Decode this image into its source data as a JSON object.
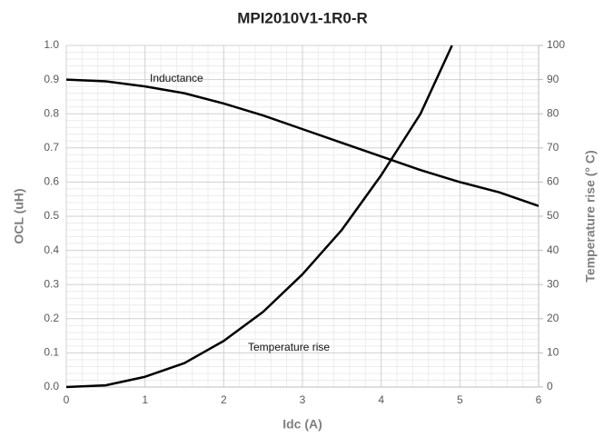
{
  "chart_data": {
    "type": "line",
    "title": "MPI2010V1-1R0-R",
    "x_label": "Idc (A)",
    "y_label": "OCL (uH)",
    "y2_label": "Temperature rise (° C)",
    "x": [
      0,
      0.5,
      1,
      1.5,
      2,
      2.5,
      3,
      3.5,
      4,
      4.5,
      4.9,
      5,
      5.5,
      6
    ],
    "series": [
      {
        "name": "Inductance",
        "color": "#000000",
        "values": [
          0.9,
          0.895,
          0.88,
          0.86,
          0.83,
          0.795,
          0.755,
          0.715,
          0.675,
          0.635,
          0.607,
          0.6,
          0.57,
          0.53
        ]
      },
      {
        "name": "Temperature rise",
        "color": "#000000",
        "axis": "y2",
        "values": [
          0,
          0.5,
          3,
          7,
          13.5,
          22,
          33,
          46,
          62,
          80,
          100,
          null,
          null,
          null
        ]
      }
    ],
    "xlim": [
      0,
      6
    ],
    "xticks": [
      0,
      1,
      2,
      3,
      4,
      5,
      6
    ],
    "ylim": [
      0,
      1
    ],
    "yticks": [
      {
        "value": 0,
        "label": "0.0"
      },
      0.1,
      0.2,
      0.3,
      0.4,
      0.5,
      0.6,
      0.7,
      0.8,
      0.9,
      {
        "value": 1,
        "label": "1.0"
      }
    ],
    "y2lim": [
      0,
      100
    ],
    "y2ticks": [
      0,
      10,
      20,
      30,
      40,
      50,
      60,
      70,
      80,
      90,
      100
    ],
    "grid": true,
    "minor_grid": true
  }
}
